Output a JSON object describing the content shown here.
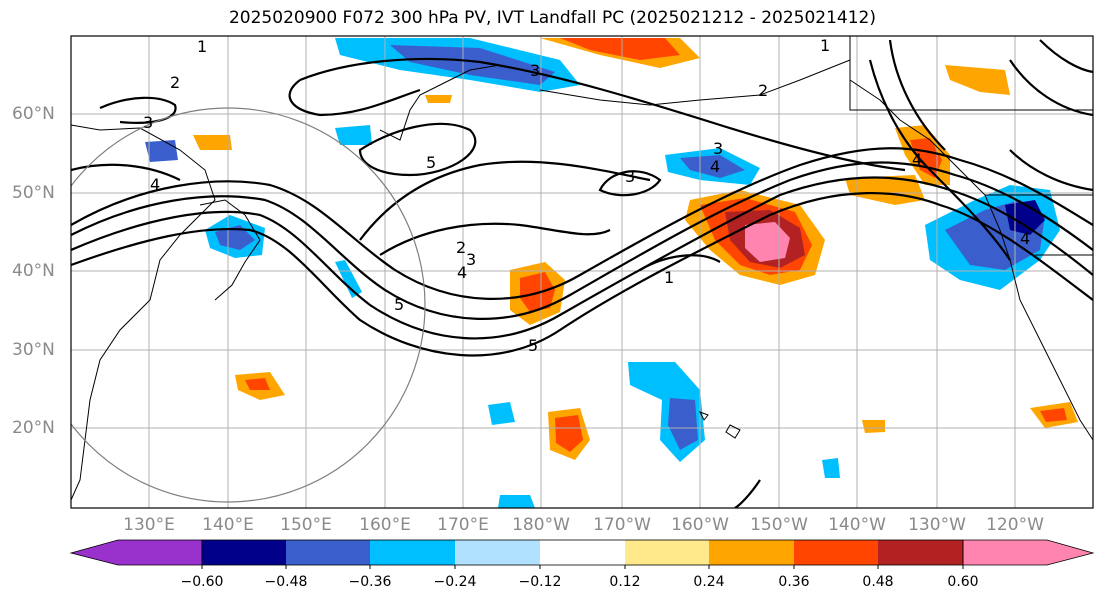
{
  "title": "2025020900 F072 300 hPa PV, IVT Landfall PC (2025021212 - 2025021412)",
  "lat_labels": [
    "60°N",
    "50°N",
    "40°N",
    "30°N",
    "20°N"
  ],
  "lon_labels": [
    "130°E",
    "140°E",
    "150°E",
    "160°E",
    "170°E",
    "180°W",
    "170°W",
    "160°W",
    "150°W",
    "140°W",
    "130°W",
    "120°W"
  ],
  "contour_labels": [
    "1",
    "2",
    "3",
    "4",
    "5",
    "5",
    "2",
    "3",
    "4",
    "5",
    "1",
    "4",
    "3",
    "4",
    "3",
    "2",
    "1",
    "4",
    "3"
  ],
  "colorbar": {
    "colors": [
      "#9932cc",
      "#00008b",
      "#3a5fcd",
      "#00bfff",
      "#b0e2ff",
      "#ffffff",
      "#ffe98a",
      "#ffa500",
      "#ff4500",
      "#b22222",
      "#ff85b0"
    ],
    "tick_labels": [
      "−0.60",
      "−0.48",
      "−0.36",
      "−0.24",
      "−0.12",
      "0.12",
      "0.24",
      "0.36",
      "0.48",
      "0.60"
    ]
  }
}
